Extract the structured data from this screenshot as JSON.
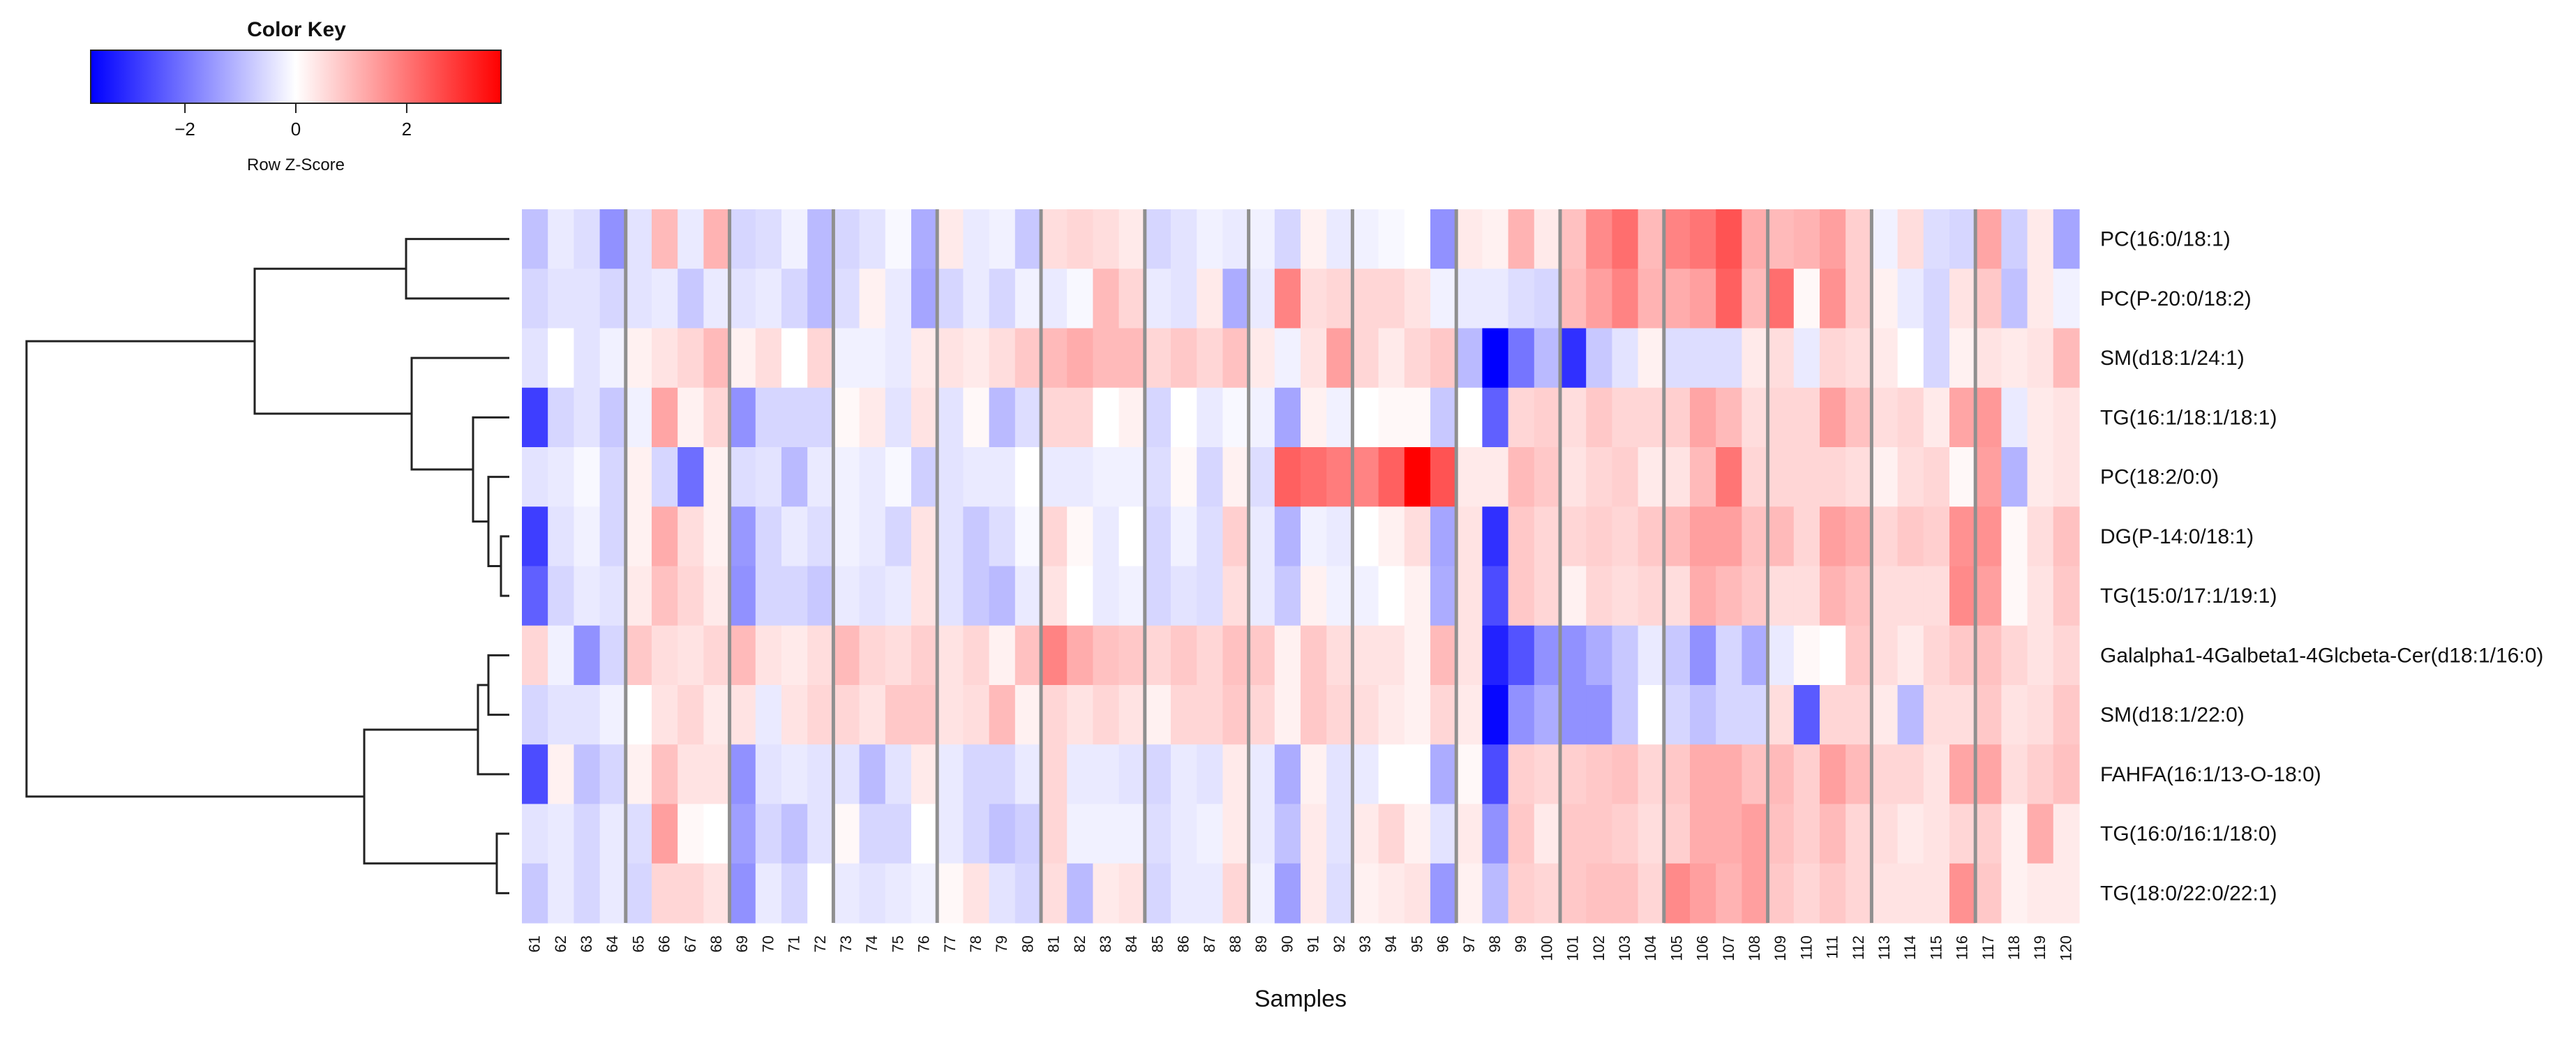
{
  "chart_data": {
    "type": "heatmap",
    "title": "",
    "xlabel": "Samples",
    "ylabel": "",
    "color_key": {
      "title": "Color Key",
      "label": "Row Z-Score",
      "ticks": [
        -2,
        0,
        2
      ],
      "range": [
        -3.7,
        3.7
      ],
      "colors": {
        "low": "#0000ff",
        "mid": "#ffffff",
        "high": "#ff0000"
      }
    },
    "x": [
      61,
      62,
      63,
      64,
      65,
      66,
      67,
      68,
      69,
      70,
      71,
      72,
      73,
      74,
      75,
      76,
      77,
      78,
      79,
      80,
      81,
      82,
      83,
      84,
      85,
      86,
      87,
      88,
      89,
      90,
      91,
      92,
      93,
      94,
      95,
      96,
      97,
      98,
      99,
      100,
      101,
      102,
      103,
      104,
      105,
      106,
      107,
      108,
      109,
      110,
      111,
      112,
      113,
      114,
      115,
      116,
      117,
      118,
      119,
      120
    ],
    "x_tick_labels": [
      "61",
      "62",
      "63",
      "64",
      "65",
      "66",
      "67",
      "68",
      "69",
      "70",
      "71",
      "72",
      "73",
      "74",
      "75",
      "76",
      "77",
      "78",
      "79",
      "80",
      "81",
      "82",
      "83",
      "84",
      "85",
      "86",
      "87",
      "88",
      "89",
      "90",
      "91",
      "92",
      "93",
      "94",
      "95",
      "96",
      "97",
      "98",
      "99",
      "100",
      "101",
      "102",
      "103",
      "104",
      "105",
      "106",
      "107",
      "108",
      "109",
      "110",
      "111",
      "112",
      "113",
      "114",
      "115",
      "116",
      "117",
      "118",
      "119",
      "120"
    ],
    "rows": [
      "PC(16:0/18:1)",
      "PC(P-20:0/18:2)",
      "SM(d18:1/24:1)",
      "TG(16:1/18:1/18:1)",
      "PC(18:2/0:0)",
      "DG(P-14:0/18:1)",
      "TG(15:0/17:1/19:1)",
      "Galalpha1-4Galbeta1-4Glcbeta-Cer(d18:1/16:0)",
      "SM(d18:1/22:0)",
      "FAHFA(16:1/13-O-18:0)",
      "TG(16:0/16:1/18:0)",
      "TG(18:0/22:0/22:1)"
    ],
    "values": [
      [
        -0.9,
        -0.3,
        -0.5,
        -1.6,
        -0.4,
        1.0,
        -0.3,
        1.1,
        -0.6,
        -0.5,
        -0.2,
        -1.0,
        -0.6,
        -0.4,
        -0.1,
        -1.2,
        0.3,
        -0.3,
        -0.2,
        -0.8,
        0.5,
        0.6,
        0.5,
        0.3,
        -0.6,
        -0.4,
        -0.2,
        -0.3,
        -0.2,
        -0.6,
        0.2,
        -0.3,
        -0.2,
        -0.1,
        0.0,
        -1.6,
        0.3,
        0.2,
        1.1,
        0.3,
        0.9,
        1.7,
        2.1,
        1.0,
        1.8,
        2.0,
        2.5,
        1.2,
        1.0,
        1.1,
        1.4,
        0.7,
        -0.2,
        0.5,
        -0.5,
        -0.6,
        1.3,
        -0.7,
        0.3,
        -1.3
      ],
      [
        -0.6,
        -0.4,
        -0.4,
        -0.6,
        -0.4,
        -0.3,
        -0.8,
        -0.3,
        -0.4,
        -0.3,
        -0.6,
        -1.0,
        -0.5,
        0.2,
        -0.3,
        -1.3,
        -0.6,
        -0.3,
        -0.6,
        -0.2,
        -0.3,
        -0.1,
        1.0,
        0.6,
        -0.3,
        -0.4,
        0.3,
        -1.2,
        -0.3,
        1.8,
        0.5,
        0.6,
        0.6,
        0.6,
        0.4,
        -0.2,
        -0.3,
        -0.3,
        -0.5,
        -0.6,
        1.0,
        1.4,
        1.8,
        1.1,
        1.2,
        1.4,
        2.3,
        1.0,
        2.1,
        0.1,
        1.6,
        0.7,
        0.2,
        -0.3,
        -0.6,
        0.4,
        0.8,
        -0.9,
        0.3,
        -0.2
      ],
      [
        -0.4,
        0.0,
        -0.4,
        -0.2,
        0.2,
        0.4,
        0.6,
        1.0,
        0.2,
        0.5,
        0.0,
        0.6,
        -0.2,
        -0.2,
        -0.3,
        0.3,
        0.4,
        0.3,
        0.5,
        0.8,
        1.0,
        1.2,
        1.0,
        1.0,
        0.6,
        0.8,
        0.6,
        0.9,
        0.3,
        -0.2,
        0.4,
        1.4,
        0.6,
        0.3,
        0.6,
        0.8,
        -1.0,
        -3.7,
        -2.0,
        -1.0,
        -3.0,
        -0.8,
        -0.4,
        0.2,
        -0.5,
        -0.5,
        -0.5,
        0.3,
        0.5,
        -0.3,
        0.6,
        0.5,
        0.3,
        0.0,
        -0.6,
        0.2,
        0.4,
        0.3,
        0.4,
        1.0
      ],
      [
        -2.8,
        -0.6,
        -0.4,
        -0.8,
        -0.2,
        1.3,
        0.2,
        0.6,
        -1.6,
        -0.6,
        -0.6,
        -0.6,
        0.1,
        0.3,
        -0.4,
        0.4,
        -0.4,
        0.1,
        -1.0,
        -0.5,
        0.6,
        0.6,
        0.0,
        0.2,
        -0.6,
        0.0,
        -0.3,
        -0.1,
        -0.2,
        -1.3,
        0.2,
        -0.2,
        0.0,
        0.1,
        0.1,
        -0.8,
        0.0,
        -2.3,
        0.6,
        0.7,
        0.5,
        0.8,
        0.6,
        0.6,
        0.7,
        1.3,
        1.0,
        0.5,
        0.6,
        0.6,
        1.4,
        0.9,
        0.5,
        0.6,
        0.3,
        1.3,
        1.5,
        -0.3,
        0.3,
        0.4
      ],
      [
        -0.4,
        -0.3,
        -0.1,
        -0.6,
        0.2,
        -0.6,
        -2.1,
        0.2,
        -0.5,
        -0.4,
        -1.0,
        -0.3,
        -0.2,
        -0.3,
        -0.1,
        -0.7,
        -0.4,
        -0.3,
        -0.3,
        0.0,
        -0.3,
        -0.3,
        -0.2,
        -0.2,
        -0.5,
        0.1,
        -0.6,
        0.2,
        -0.5,
        2.3,
        2.1,
        1.9,
        1.8,
        2.3,
        3.7,
        2.5,
        0.3,
        0.3,
        1.0,
        0.8,
        0.4,
        0.6,
        0.7,
        0.3,
        0.4,
        1.0,
        2.0,
        0.6,
        0.6,
        0.6,
        0.6,
        0.5,
        0.2,
        0.5,
        0.6,
        0.1,
        1.4,
        -1.1,
        0.3,
        0.4
      ],
      [
        -2.8,
        -0.4,
        -0.2,
        -0.6,
        0.2,
        1.2,
        0.5,
        0.2,
        -1.5,
        -0.6,
        -0.3,
        -0.5,
        -0.2,
        -0.3,
        -0.6,
        0.4,
        -0.4,
        -0.8,
        -0.5,
        -0.1,
        0.6,
        0.1,
        -0.3,
        0.0,
        -0.6,
        -0.2,
        -0.5,
        0.7,
        -0.3,
        -1.1,
        -0.2,
        -0.3,
        0.0,
        0.2,
        0.5,
        -1.3,
        0.4,
        -3.0,
        0.8,
        0.6,
        0.6,
        0.7,
        0.6,
        0.8,
        1.0,
        1.4,
        1.4,
        0.9,
        1.0,
        0.6,
        1.4,
        1.2,
        0.6,
        0.8,
        0.7,
        1.6,
        1.6,
        0.1,
        0.5,
        0.9
      ],
      [
        -2.3,
        -0.6,
        -0.3,
        -0.4,
        0.3,
        0.9,
        0.6,
        0.3,
        -1.6,
        -0.6,
        -0.6,
        -0.8,
        -0.3,
        -0.4,
        -0.3,
        0.4,
        -0.4,
        -0.8,
        -1.0,
        -0.3,
        0.4,
        0.0,
        -0.3,
        -0.2,
        -0.6,
        -0.4,
        -0.5,
        0.5,
        -0.3,
        -0.8,
        0.2,
        -0.2,
        -0.2,
        0.0,
        0.2,
        -1.2,
        0.4,
        -2.6,
        0.8,
        0.6,
        0.2,
        0.6,
        0.5,
        0.6,
        0.5,
        1.2,
        1.0,
        0.8,
        0.5,
        0.5,
        1.1,
        0.9,
        0.5,
        0.5,
        0.5,
        1.7,
        1.4,
        0.1,
        0.4,
        0.8
      ],
      [
        0.6,
        -0.2,
        -1.6,
        -0.6,
        0.8,
        0.5,
        0.4,
        0.6,
        1.0,
        0.4,
        0.3,
        0.5,
        1.0,
        0.6,
        0.5,
        0.7,
        0.4,
        0.6,
        0.2,
        0.9,
        1.8,
        1.2,
        0.9,
        0.8,
        0.6,
        0.8,
        0.6,
        0.9,
        0.8,
        0.2,
        0.8,
        0.5,
        0.4,
        0.4,
        0.2,
        1.0,
        0.4,
        -3.2,
        -2.5,
        -1.6,
        -1.6,
        -1.2,
        -0.8,
        -0.3,
        -0.8,
        -1.6,
        -0.6,
        -1.2,
        -0.3,
        0.1,
        0.0,
        0.8,
        0.5,
        0.3,
        0.6,
        0.8,
        0.9,
        0.6,
        0.4,
        0.6
      ],
      [
        -0.6,
        -0.4,
        -0.4,
        -0.2,
        0.0,
        0.4,
        0.6,
        0.3,
        0.4,
        -0.3,
        0.4,
        0.6,
        0.6,
        0.4,
        0.8,
        0.8,
        0.4,
        0.5,
        1.0,
        0.2,
        0.6,
        0.4,
        0.6,
        0.4,
        0.2,
        0.6,
        0.6,
        0.8,
        0.6,
        0.2,
        0.8,
        0.6,
        0.5,
        0.3,
        0.2,
        0.6,
        0.3,
        -3.6,
        -1.6,
        -1.2,
        -1.6,
        -1.6,
        -0.8,
        0.0,
        -0.6,
        -0.9,
        -0.6,
        -0.6,
        0.5,
        -2.4,
        0.6,
        0.6,
        0.3,
        -1.0,
        0.5,
        0.5,
        0.8,
        0.4,
        0.5,
        0.8
      ],
      [
        -2.6,
        0.2,
        -0.9,
        -0.6,
        0.2,
        0.9,
        0.4,
        0.4,
        -1.6,
        -0.4,
        -0.3,
        -0.4,
        -0.4,
        -1.0,
        -0.4,
        0.3,
        -0.3,
        -0.6,
        -0.6,
        -0.3,
        0.6,
        -0.3,
        -0.3,
        -0.4,
        -0.6,
        -0.3,
        -0.4,
        0.3,
        -0.3,
        -1.2,
        0.2,
        -0.4,
        -0.3,
        0.0,
        0.0,
        -1.2,
        0.1,
        -2.6,
        0.7,
        0.6,
        0.7,
        0.8,
        0.9,
        0.6,
        0.8,
        1.2,
        1.2,
        0.9,
        1.0,
        0.7,
        1.4,
        1.0,
        0.6,
        0.6,
        0.4,
        1.3,
        1.3,
        0.5,
        0.7,
        0.9
      ],
      [
        -0.4,
        -0.3,
        -0.6,
        -0.3,
        -0.5,
        1.4,
        0.1,
        0.0,
        -1.4,
        -0.6,
        -0.9,
        -0.4,
        0.1,
        -0.6,
        -0.6,
        0.0,
        -0.3,
        -0.6,
        -0.9,
        -0.7,
        0.6,
        -0.2,
        -0.2,
        -0.2,
        -0.5,
        -0.3,
        -0.2,
        0.3,
        -0.3,
        -0.9,
        0.3,
        -0.4,
        0.3,
        0.6,
        0.2,
        -0.4,
        0.3,
        -1.6,
        0.8,
        0.3,
        0.8,
        0.8,
        0.7,
        0.5,
        0.7,
        1.2,
        1.2,
        1.4,
        0.9,
        0.7,
        1.0,
        0.6,
        0.5,
        0.3,
        0.4,
        0.6,
        0.7,
        0.2,
        1.2,
        0.3
      ],
      [
        -0.8,
        -0.3,
        -0.6,
        -0.3,
        -0.6,
        0.6,
        0.6,
        0.4,
        -1.6,
        -0.3,
        -0.6,
        0.0,
        -0.3,
        -0.4,
        -0.3,
        -0.2,
        0.1,
        0.4,
        -0.4,
        -0.6,
        0.5,
        -1.0,
        0.3,
        0.4,
        -0.6,
        -0.3,
        -0.3,
        0.6,
        -0.2,
        -1.4,
        0.3,
        -0.5,
        0.2,
        0.3,
        0.4,
        -1.5,
        0.2,
        -1.0,
        0.7,
        0.6,
        0.8,
        0.9,
        0.9,
        0.6,
        1.7,
        1.4,
        1.1,
        1.4,
        0.8,
        0.6,
        0.8,
        0.6,
        0.4,
        0.4,
        0.4,
        1.6,
        0.8,
        0.2,
        0.3,
        0.3
      ]
    ],
    "row_dendrogram": {
      "position": "left"
    },
    "column_separators_after": [
      4,
      8,
      12,
      16,
      20,
      24,
      28,
      32,
      36,
      40,
      44,
      48,
      52,
      56
    ]
  }
}
